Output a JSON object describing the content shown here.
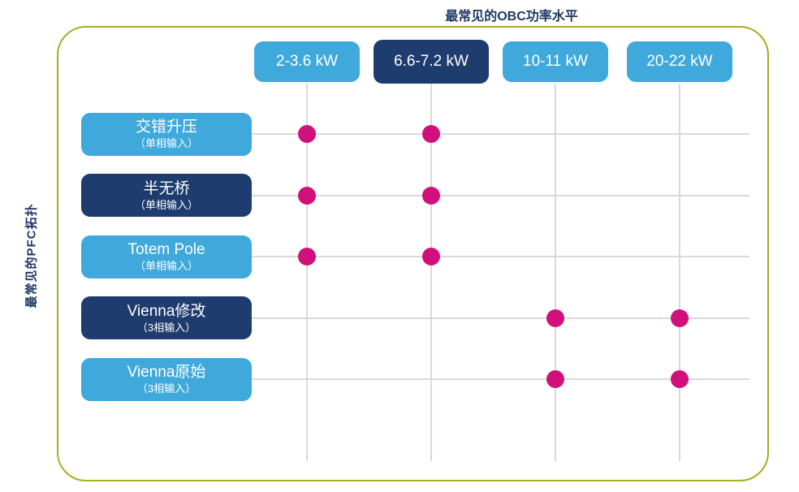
{
  "title": "最常见的OBC功率水平",
  "y_axis_label": "最常见的PFC拓扑",
  "colors": {
    "light_blue": "#3FA9DC",
    "dark_navy": "#1E3C6E",
    "dot_magenta": "#D2107B",
    "frame_green": "#A6AE23",
    "grid_gray": "#D9D9D9",
    "title_navy": "#1F3864"
  },
  "chart_data": {
    "type": "scatter",
    "title": "最常见的OBC功率水平",
    "xlabel": "最常见的OBC功率水平",
    "ylabel": "最常见的PFC拓扑",
    "legend": [],
    "grid": true,
    "columns": [
      {
        "label": "2-3.6 kW",
        "emphasized": false
      },
      {
        "label": "6.6-7.2 kW",
        "emphasized": true
      },
      {
        "label": "10-11 kW",
        "emphasized": false
      },
      {
        "label": "20-22 kW",
        "emphasized": false
      }
    ],
    "rows": [
      {
        "label": "交错升压",
        "sublabel": "（单相输入）",
        "emphasized": false,
        "marked_columns": [
          "2-3.6 kW",
          "6.6-7.2 kW"
        ]
      },
      {
        "label": "半无桥",
        "sublabel": "（单相输入）",
        "emphasized": true,
        "marked_columns": [
          "2-3.6 kW",
          "6.6-7.2 kW"
        ]
      },
      {
        "label": "Totem Pole",
        "sublabel": "（单相输入）",
        "emphasized": false,
        "marked_columns": [
          "2-3.6 kW",
          "6.6-7.2 kW"
        ]
      },
      {
        "label": "Vienna修改",
        "sublabel": "（3相输入）",
        "emphasized": true,
        "marked_columns": [
          "10-11 kW",
          "20-22 kW"
        ]
      },
      {
        "label": "Vienna原始",
        "sublabel": "（3相输入）",
        "emphasized": false,
        "marked_columns": [
          "10-11 kW",
          "20-22 kW"
        ]
      }
    ],
    "points": [
      {
        "row": 0,
        "col": 0
      },
      {
        "row": 0,
        "col": 1
      },
      {
        "row": 1,
        "col": 0
      },
      {
        "row": 1,
        "col": 1
      },
      {
        "row": 2,
        "col": 0
      },
      {
        "row": 2,
        "col": 1
      },
      {
        "row": 3,
        "col": 2
      },
      {
        "row": 3,
        "col": 3
      },
      {
        "row": 4,
        "col": 2
      },
      {
        "row": 4,
        "col": 3
      }
    ]
  }
}
